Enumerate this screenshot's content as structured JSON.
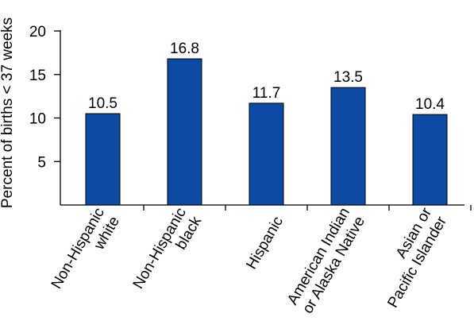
{
  "chart_data": {
    "type": "bar",
    "title": "",
    "xlabel": "",
    "ylabel": "Percent of births < 37 weeks",
    "ylim": [
      0,
      20
    ],
    "yticks": [
      5,
      10,
      15,
      20
    ],
    "grid": false,
    "bar_color": "#0b4ba6",
    "categories": [
      [
        "Non-Hispanic",
        "white"
      ],
      [
        "Non-Hispanic",
        "black"
      ],
      [
        "Hispanic"
      ],
      [
        "American Indian",
        "or Alaska Native"
      ],
      [
        "Asian or",
        "Pacific Islander"
      ]
    ],
    "values": [
      10.5,
      16.8,
      11.7,
      13.5,
      10.4
    ],
    "value_labels": [
      "10.5",
      "16.8",
      "11.7",
      "13.5",
      "10.4"
    ]
  }
}
